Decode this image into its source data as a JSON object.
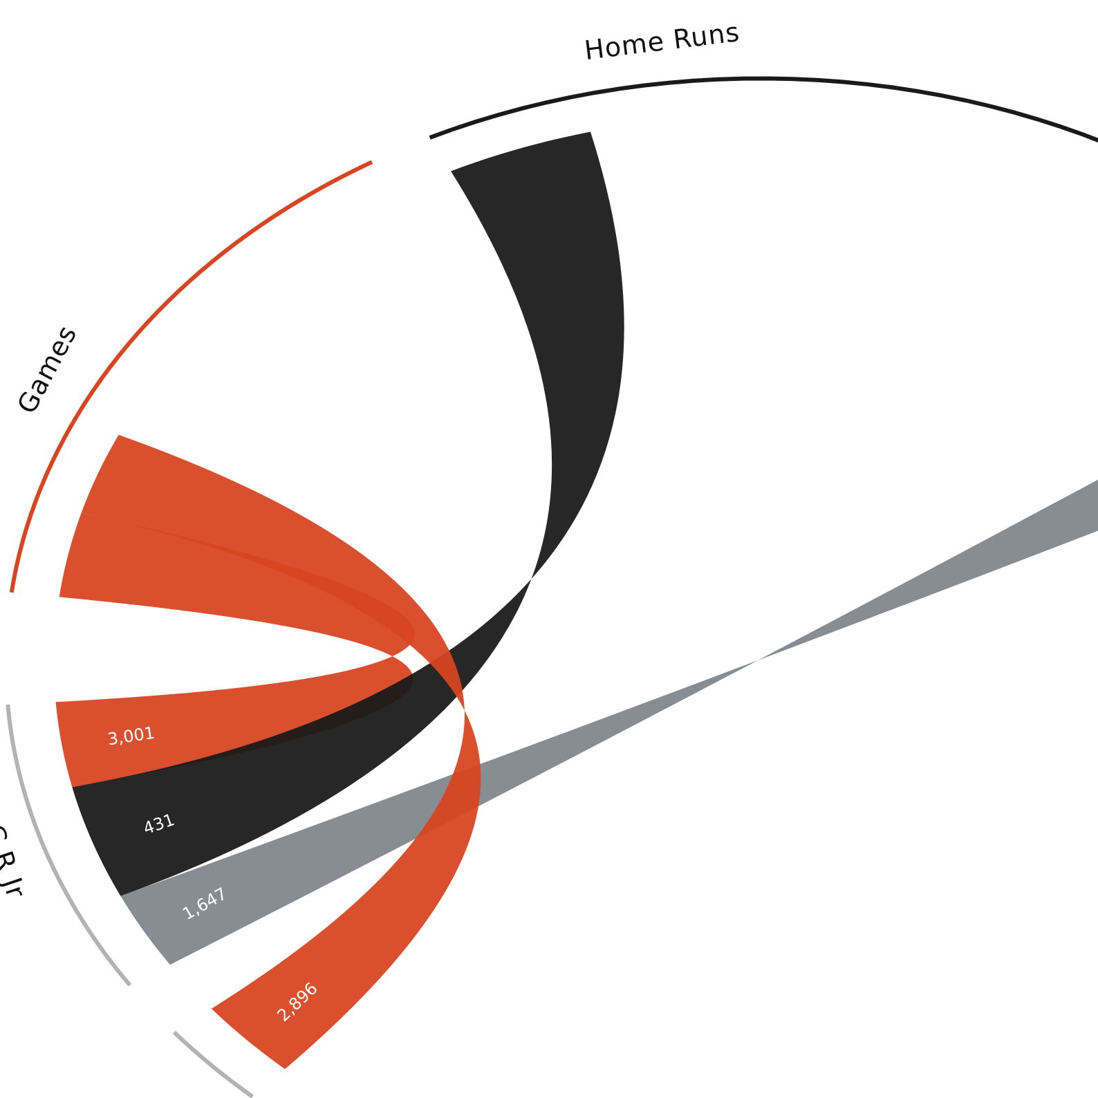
{
  "chart_data": {
    "type": "chord",
    "categories": [
      "Games",
      "Home Runs",
      null
    ],
    "colors": [
      "#d84521",
      "#1a1a1a",
      "#7f868b"
    ],
    "series": [
      {
        "name": "C R Jr",
        "values": [
          3001,
          431,
          1647
        ],
        "value_labels": [
          "3,001",
          "431",
          "1,647"
        ]
      },
      {
        "name": null,
        "values": [
          2896,
          null,
          null
        ],
        "value_labels": [
          "2,896",
          null,
          null
        ]
      }
    ]
  }
}
